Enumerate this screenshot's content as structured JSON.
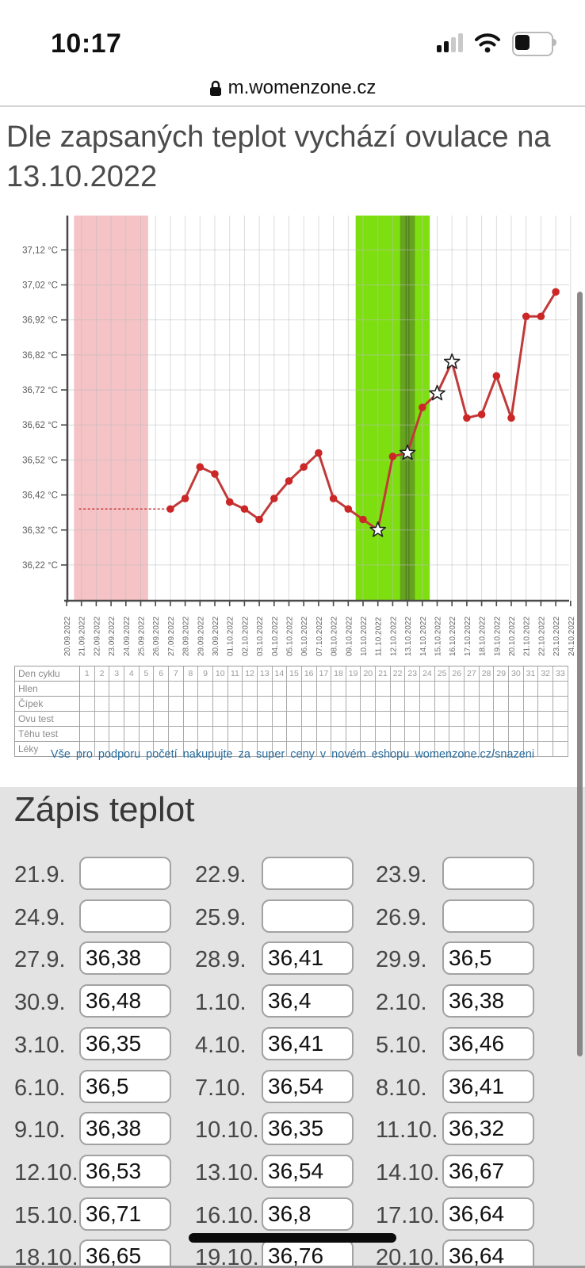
{
  "status_bar": {
    "time": "10:17",
    "signal_bars_active": 2,
    "signal_bars_total": 4,
    "battery_level": 0.4
  },
  "url_bar": {
    "domain": "m.womenzone.cz"
  },
  "heading": "Dle zapsaných teplot vychází ovulace na 13.10.2022",
  "colors": {
    "line": "#c13a3a",
    "marker": "#cb2727",
    "menstruation_band": "#f5c2c6",
    "fertile_band": "#7ddf10",
    "high_fertile_band": "#66a41e",
    "ovulation_stripe": "#4f8518",
    "link": "#2d6f9f",
    "section_bg": "#e3e3e3"
  },
  "chart_data": {
    "type": "line",
    "title": "",
    "xlabel": "",
    "ylabel": "°C",
    "grid": true,
    "legend": "none",
    "ylim": [
      36.118,
      37.218
    ],
    "y_ticks": [
      "37,12 °C",
      "37,02 °C",
      "36,92 °C",
      "36,82 °C",
      "36,72 °C",
      "36,62 °C",
      "36,52 °C",
      "36,42 °C",
      "36,32 °C",
      "36,22 °C"
    ],
    "x_dates": [
      "20.09.2022",
      "21.09.2022",
      "22.09.2022",
      "23.09.2022",
      "24.09.2022",
      "25.09.2022",
      "26.09.2022",
      "27.09.2022",
      "28.09.2022",
      "29.09.2022",
      "30.09.2022",
      "01.10.2022",
      "02.10.2022",
      "03.10.2022",
      "04.10.2022",
      "05.10.2022",
      "06.10.2022",
      "07.10.2022",
      "08.10.2022",
      "09.10.2022",
      "10.10.2022",
      "11.10.2022",
      "12.10.2022",
      "13.10.2022",
      "14.10.2022",
      "15.10.2022",
      "16.10.2022",
      "17.10.2022",
      "18.10.2022",
      "19.10.2022",
      "20.10.2022",
      "21.10.2022",
      "22.10.2022",
      "23.10.2022",
      "24.10.2022"
    ],
    "baseline": {
      "value": 36.38,
      "from": "21.09.2022",
      "to": "27.09.2022",
      "style": "dashed"
    },
    "regions": [
      {
        "name": "menstruation",
        "from": "21.09.2022",
        "to": "25.09.2022",
        "color": "#f5c2c6"
      },
      {
        "name": "fertile-days",
        "from": "10.10.2022",
        "to": "14.10.2022",
        "color": "#7ddf10"
      },
      {
        "name": "high-fertility",
        "from": "13.10.2022",
        "to": "13.10.2022",
        "color": "#66a41e"
      },
      {
        "name": "ovulation-line",
        "from": "13.10.2022",
        "to": "13.10.2022",
        "color": "#4f8518"
      }
    ],
    "points": [
      {
        "date": "27.09.2022",
        "value": 36.38,
        "marker": "dot"
      },
      {
        "date": "28.09.2022",
        "value": 36.41,
        "marker": "dot"
      },
      {
        "date": "29.09.2022",
        "value": 36.5,
        "marker": "dot"
      },
      {
        "date": "30.09.2022",
        "value": 36.48,
        "marker": "dot"
      },
      {
        "date": "01.10.2022",
        "value": 36.4,
        "marker": "dot"
      },
      {
        "date": "02.10.2022",
        "value": 36.38,
        "marker": "dot"
      },
      {
        "date": "03.10.2022",
        "value": 36.35,
        "marker": "dot"
      },
      {
        "date": "04.10.2022",
        "value": 36.41,
        "marker": "dot"
      },
      {
        "date": "05.10.2022",
        "value": 36.46,
        "marker": "dot"
      },
      {
        "date": "06.10.2022",
        "value": 36.5,
        "marker": "dot"
      },
      {
        "date": "07.10.2022",
        "value": 36.54,
        "marker": "dot"
      },
      {
        "date": "08.10.2022",
        "value": 36.41,
        "marker": "dot"
      },
      {
        "date": "09.10.2022",
        "value": 36.38,
        "marker": "dot"
      },
      {
        "date": "10.10.2022",
        "value": 36.35,
        "marker": "dot"
      },
      {
        "date": "11.10.2022",
        "value": 36.32,
        "marker": "star"
      },
      {
        "date": "12.10.2022",
        "value": 36.53,
        "marker": "dot"
      },
      {
        "date": "13.10.2022",
        "value": 36.54,
        "marker": "star"
      },
      {
        "date": "14.10.2022",
        "value": 36.67,
        "marker": "dot"
      },
      {
        "date": "15.10.2022",
        "value": 36.71,
        "marker": "star"
      },
      {
        "date": "16.10.2022",
        "value": 36.8,
        "marker": "star"
      },
      {
        "date": "17.10.2022",
        "value": 36.64,
        "marker": "dot"
      },
      {
        "date": "18.10.2022",
        "value": 36.65,
        "marker": "dot"
      },
      {
        "date": "19.10.2022",
        "value": 36.76,
        "marker": "dot"
      },
      {
        "date": "20.10.2022",
        "value": 36.64,
        "marker": "dot"
      },
      {
        "date": "21.10.2022",
        "value": 36.93,
        "marker": "dot"
      },
      {
        "date": "22.10.2022",
        "value": 36.93,
        "marker": "dot"
      },
      {
        "date": "23.10.2022",
        "value": 37.0,
        "marker": "dot"
      }
    ]
  },
  "cycle_table": {
    "rows": [
      {
        "label": "Den cyklu",
        "cells": [
          "1",
          "2",
          "3",
          "4",
          "5",
          "6",
          "7",
          "8",
          "9",
          "10",
          "11",
          "12",
          "13",
          "14",
          "15",
          "16",
          "17",
          "18",
          "19",
          "20",
          "21",
          "22",
          "23",
          "24",
          "25",
          "26",
          "27",
          "28",
          "29",
          "30",
          "31",
          "32",
          "33"
        ]
      },
      {
        "label": "Hlen",
        "cells": []
      },
      {
        "label": "Čípek",
        "cells": []
      },
      {
        "label": "Ovu test",
        "cells": []
      },
      {
        "label": "Těhu test",
        "cells": []
      },
      {
        "label": "Léky",
        "cells": []
      }
    ],
    "num_day_columns": 33
  },
  "promo_link": "Vše pro podporu početí nakupujte za super ceny v novém eshopu womenzone.cz/snazeni",
  "zapis": {
    "title": "Zápis teplot",
    "entries": [
      {
        "label": "21.9.",
        "value": ""
      },
      {
        "label": "22.9.",
        "value": ""
      },
      {
        "label": "23.9.",
        "value": ""
      },
      {
        "label": "24.9.",
        "value": ""
      },
      {
        "label": "25.9.",
        "value": ""
      },
      {
        "label": "26.9.",
        "value": ""
      },
      {
        "label": "27.9.",
        "value": "36,38"
      },
      {
        "label": "28.9.",
        "value": "36,41"
      },
      {
        "label": "29.9.",
        "value": "36,5"
      },
      {
        "label": "30.9.",
        "value": "36,48"
      },
      {
        "label": "1.10.",
        "value": "36,4"
      },
      {
        "label": "2.10.",
        "value": "36,38"
      },
      {
        "label": "3.10.",
        "value": "36,35"
      },
      {
        "label": "4.10.",
        "value": "36,41"
      },
      {
        "label": "5.10.",
        "value": "36,46"
      },
      {
        "label": "6.10.",
        "value": "36,5"
      },
      {
        "label": "7.10.",
        "value": "36,54"
      },
      {
        "label": "8.10.",
        "value": "36,41"
      },
      {
        "label": "9.10.",
        "value": "36,38"
      },
      {
        "label": "10.10.",
        "value": "36,35"
      },
      {
        "label": "11.10.",
        "value": "36,32"
      },
      {
        "label": "12.10.",
        "value": "36,53"
      },
      {
        "label": "13.10.",
        "value": "36,54"
      },
      {
        "label": "14.10.",
        "value": "36,67"
      },
      {
        "label": "15.10.",
        "value": "36,71"
      },
      {
        "label": "16.10.",
        "value": "36,8"
      },
      {
        "label": "17.10.",
        "value": "36,64"
      },
      {
        "label": "18.10.",
        "value": "36,65"
      },
      {
        "label": "19.10.",
        "value": "36,76"
      },
      {
        "label": "20.10.",
        "value": "36,64"
      }
    ]
  }
}
